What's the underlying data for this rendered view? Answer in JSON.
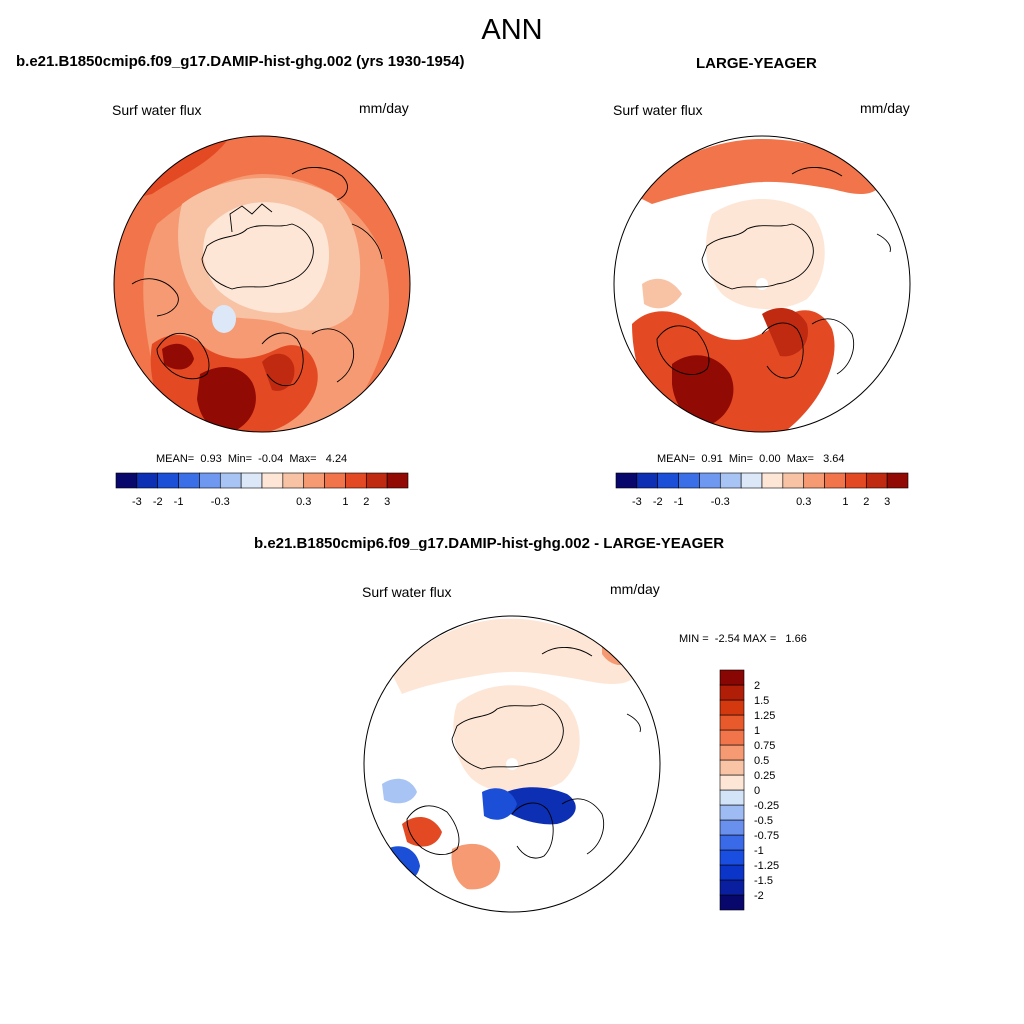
{
  "main_title": "ANN",
  "panels": [
    {
      "title": "b.e21.B1850cmip6.f09_g17.DAMIP-hist-ghg.002 (yrs 1930-1954)",
      "variable": "Surf water flux",
      "units": "mm/day",
      "stats": {
        "mean_label": "MEAN=",
        "mean": "0.93",
        "min_label": "Min=",
        "min": "-0.04",
        "max_label": "Max=",
        "max": "4.24"
      }
    },
    {
      "title": "LARGE-YEAGER",
      "variable": "Surf water flux",
      "units": "mm/day",
      "stats": {
        "mean_label": "MEAN=",
        "mean": "0.91",
        "min_label": "Min=",
        "min": "0.00",
        "max_label": "Max=",
        "max": "3.64"
      }
    },
    {
      "title": "b.e21.B1850cmip6.f09_g17.DAMIP-hist-ghg.002 - LARGE-YEAGER",
      "variable": "Surf water flux",
      "units": "mm/day",
      "stats": {
        "min_label": "MIN =",
        "min": "-2.54",
        "max_label": "MAX =",
        "max": "1.66"
      }
    }
  ],
  "colorbar_horizontal": {
    "colors": [
      "#08076b",
      "#0c2fb4",
      "#1b4fd8",
      "#3a6fe8",
      "#6f98f0",
      "#a8c4f4",
      "#dce8f8",
      "#fde6d6",
      "#f8c2a4",
      "#f59a72",
      "#f2744a",
      "#e34a24",
      "#c02a10",
      "#920a04"
    ],
    "tick_labels": [
      "-3",
      "-2",
      "-1",
      "-0.3",
      "0.3",
      "1",
      "2",
      "3"
    ]
  },
  "colorbar_vertical": {
    "colors": [
      "#08076b",
      "#0a1fa0",
      "#0b34c8",
      "#1a4ee0",
      "#3a6ae8",
      "#6a90ee",
      "#9fbbf3",
      "#d4e4f8",
      "#fde6d6",
      "#f9c4a6",
      "#f59a72",
      "#f2744a",
      "#e85a2c",
      "#d4380e",
      "#b01e08",
      "#880604"
    ],
    "tick_labels": [
      "-2",
      "-1.5",
      "-1.25",
      "-1",
      "-0.75",
      "-0.5",
      "-0.25",
      "0",
      "0.25",
      "0.5",
      "0.75",
      "1",
      "1.25",
      "1.5",
      "2"
    ]
  },
  "map_colors": {
    "outer_ring": "#f2744a",
    "mid": "#f59a72",
    "light": "#f8c2a4",
    "pale": "#fde6d6",
    "dark": "#c02a10",
    "darkest": "#920a04",
    "blue_light": "#a8c4f4",
    "blue": "#1b4fd8",
    "blue_dark": "#0c2fb4"
  }
}
